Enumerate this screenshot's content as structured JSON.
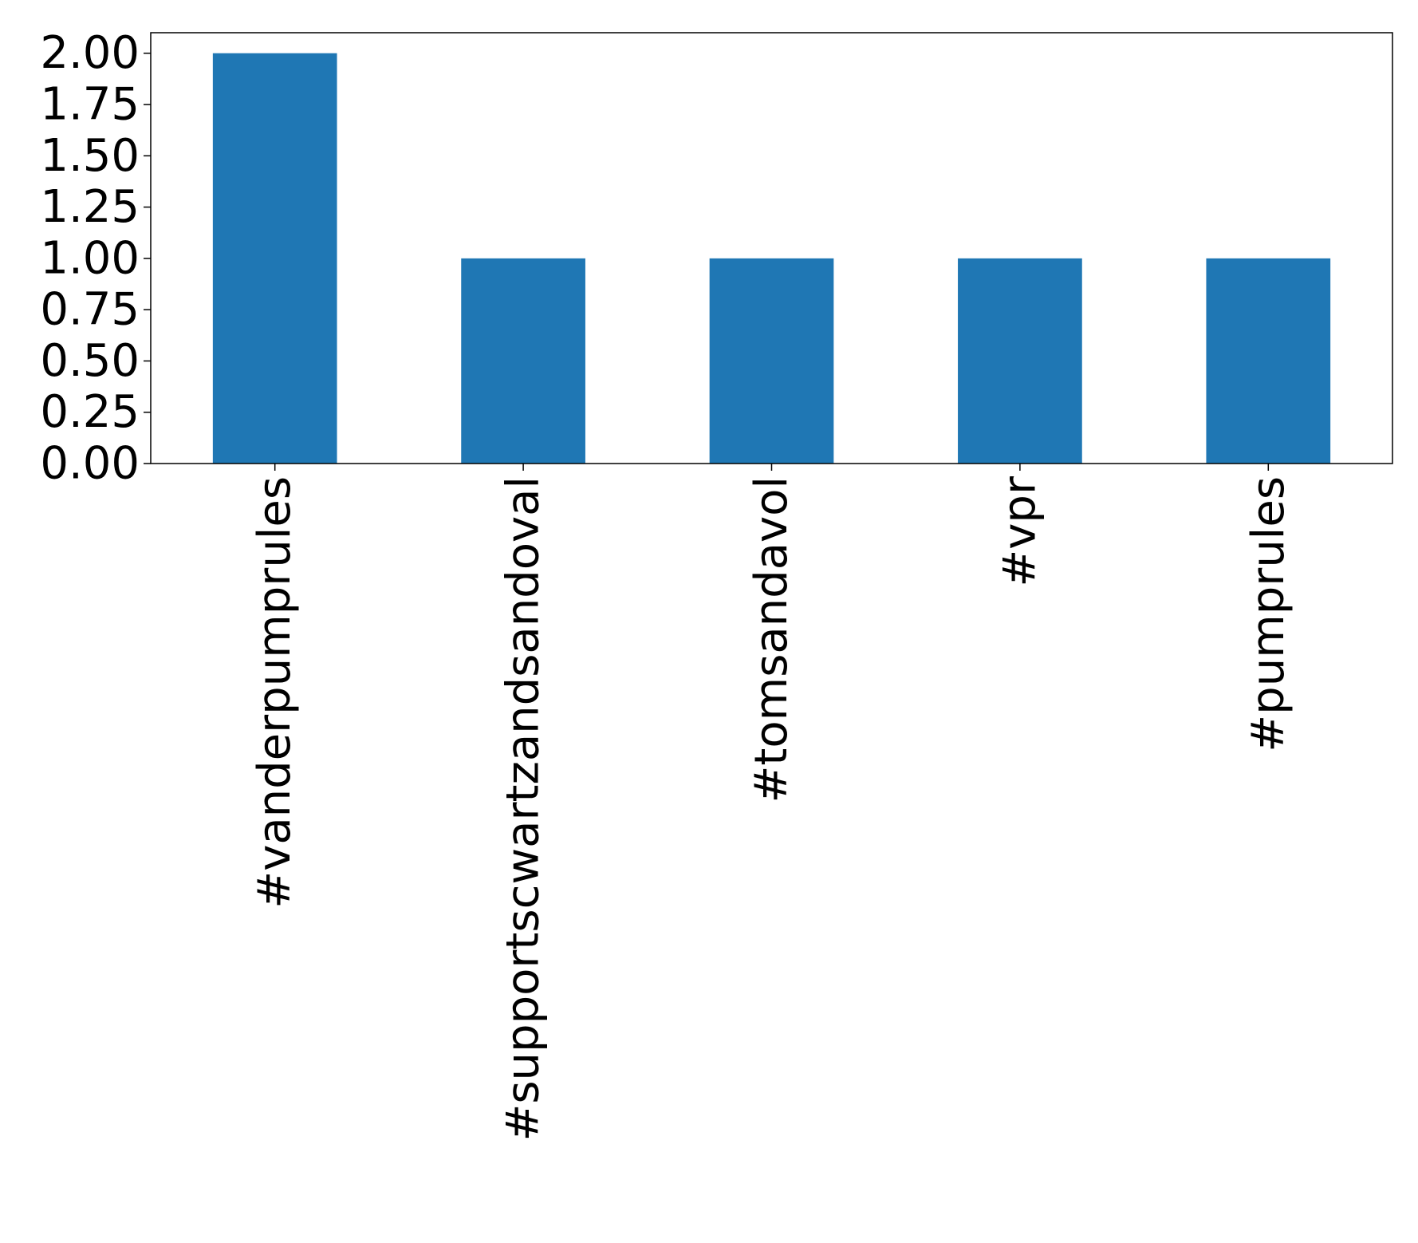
{
  "chart_data": {
    "type": "bar",
    "categories": [
      "#vanderpumprules",
      "#supportscwartzandsandoval",
      "#tomsandavol",
      "#vpr",
      "#pumprules"
    ],
    "values": [
      2,
      1,
      1,
      1,
      1
    ],
    "title": "",
    "xlabel": "",
    "ylabel": "",
    "ylim": [
      0,
      2.1
    ],
    "yticks": [
      "0.00",
      "0.25",
      "0.50",
      "0.75",
      "1.00",
      "1.25",
      "1.50",
      "1.75",
      "2.00"
    ],
    "grid": false,
    "legend": "none",
    "bar_color": "#1f77b4",
    "xtick_rotation": "vertical"
  }
}
